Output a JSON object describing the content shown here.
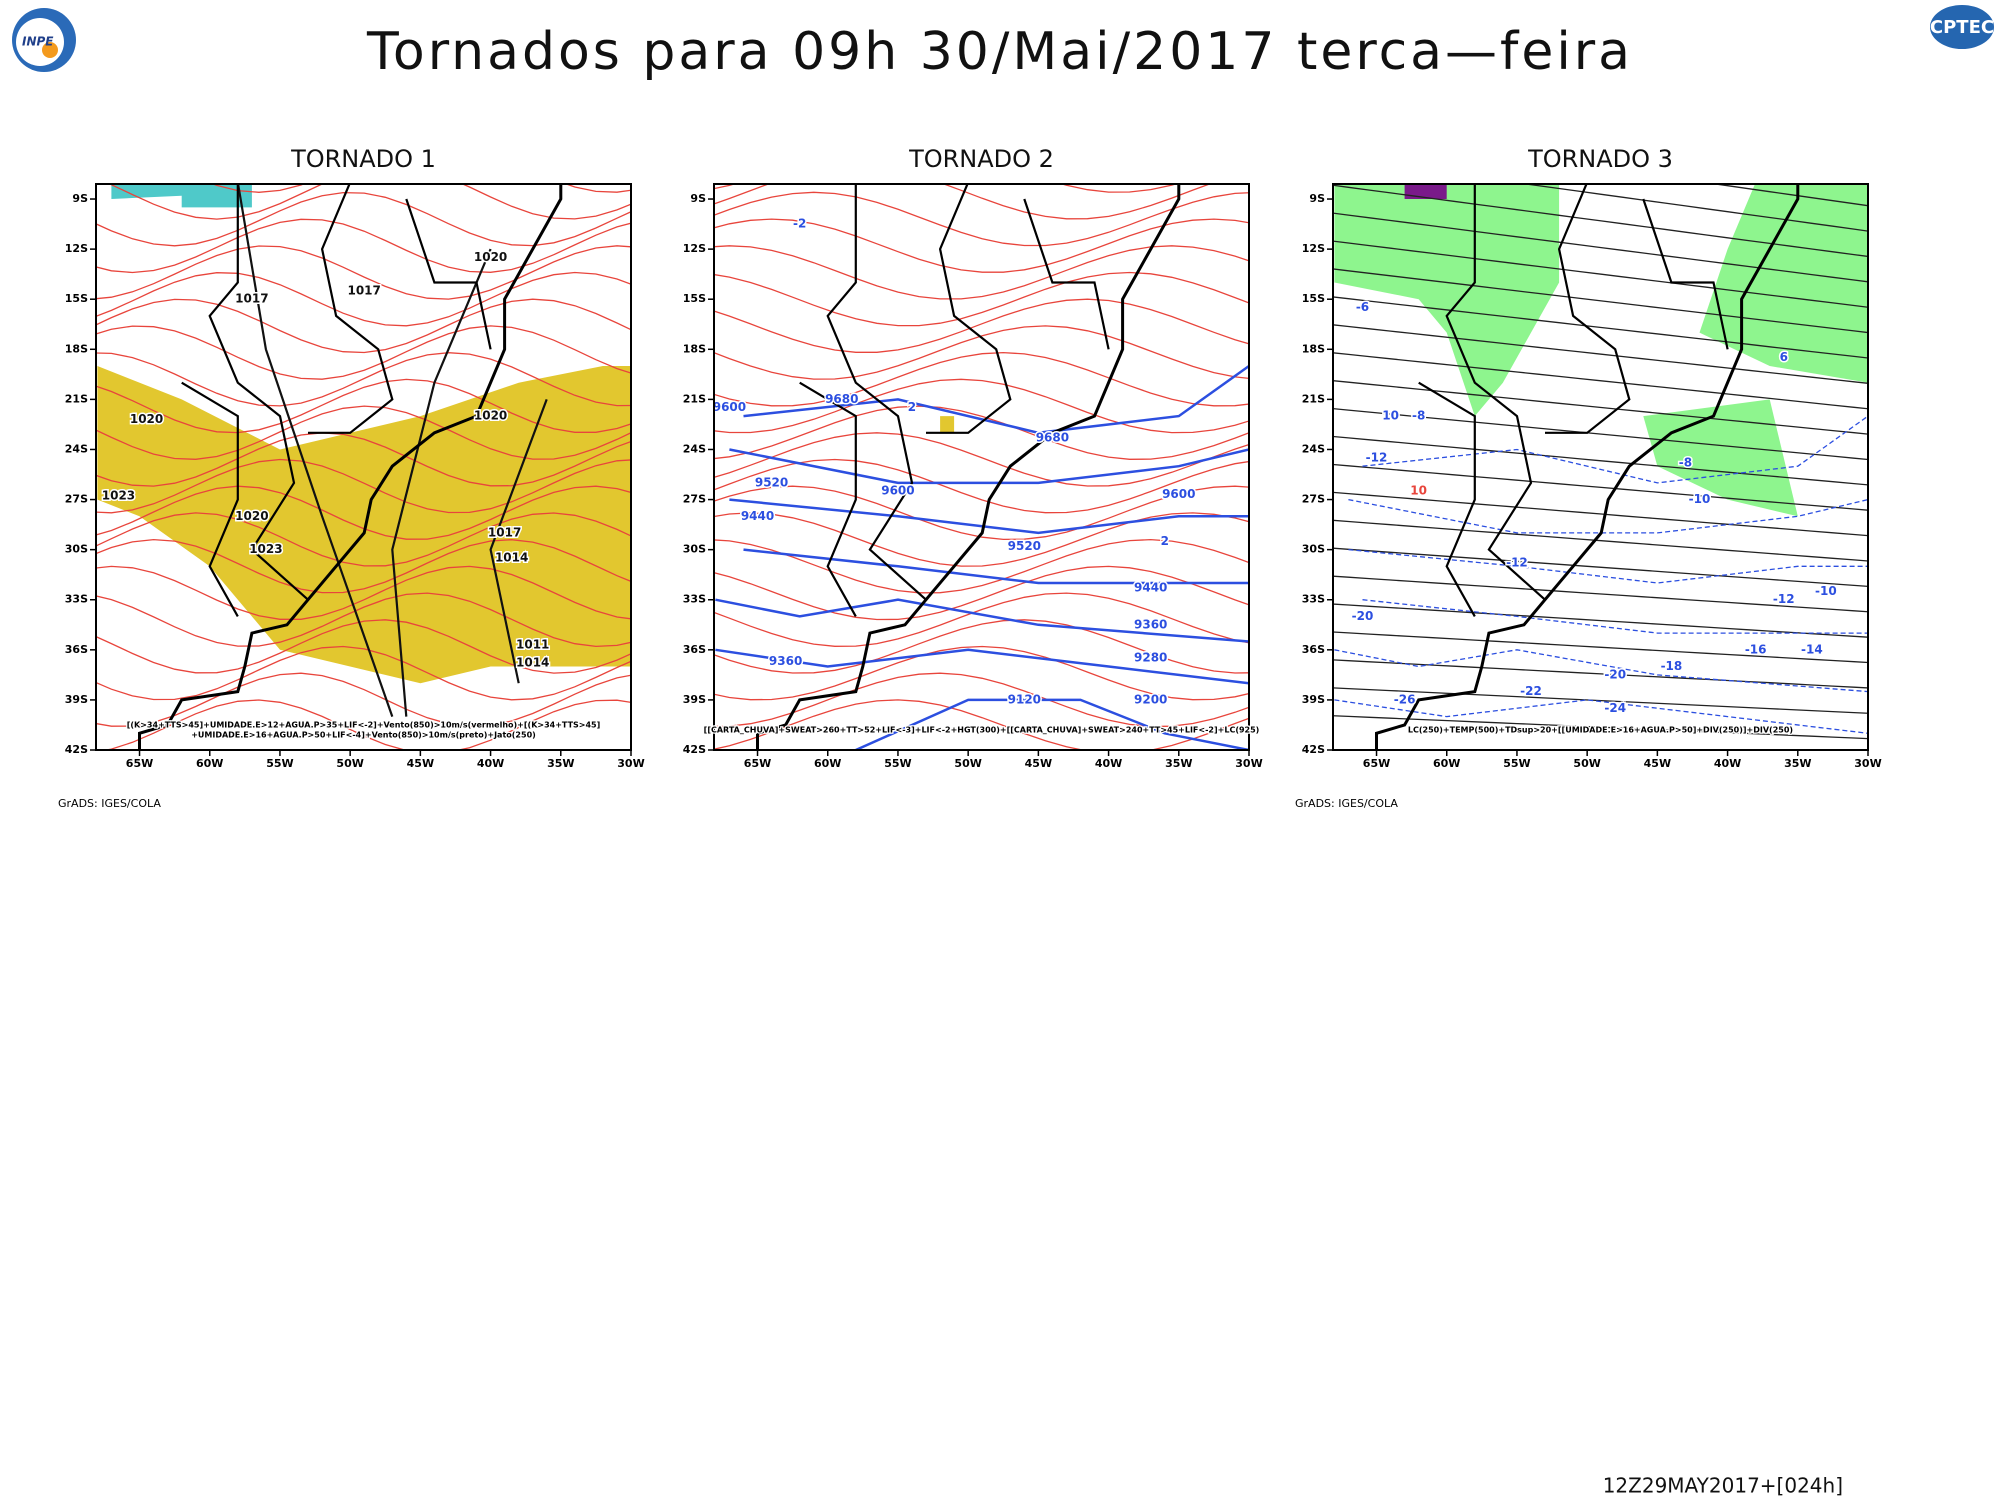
{
  "header": {
    "title": "Tornados  para 09h 30/Mai/2017 terca—feira",
    "logo_left": "INPE",
    "logo_right": "CPTEC"
  },
  "lat_labels": [
    "9S",
    "12S",
    "15S",
    "18S",
    "21S",
    "24S",
    "27S",
    "30S",
    "33S",
    "36S",
    "39S",
    "42S"
  ],
  "lon_labels": [
    "65W",
    "60W",
    "55W",
    "50W",
    "45W",
    "40W",
    "35W",
    "30W"
  ],
  "panels": [
    {
      "title": "TORNADO 1",
      "caption": [
        "[(K>34+TTS>45]+UMIDADE.E>12+AGUA.P>35+LIF<-2]+Vento(850)>10m/s(vermelho)+[(K>34+TTS>45]",
        "+UMIDADE.E>16+AGUA.P>50+LIF<-4]+Vento(850)>10m/s(preto)+Jato(250)"
      ],
      "footer": "GrADS: IGES/COLA",
      "contour_labels": [
        "1020",
        "1017",
        "1017",
        "1020",
        "1020",
        "1023",
        "1020",
        "1023",
        "1017",
        "1014",
        "1011",
        "1014"
      ]
    },
    {
      "title": "TORNADO 2",
      "caption": [
        "[[CARTA_CHUVA]+SWEAT>260+TT>52+LIF<-3]+LIF<-2+HGT(300)+[[CARTA_CHUVA]+SWEAT>240+TT>45+LIF<-2]+LC(925)"
      ],
      "contour_labels": [
        "-2",
        "9680",
        "9600",
        "2",
        "9680",
        "9520",
        "9600",
        "9600",
        "9440",
        "9520",
        "9440",
        "2",
        "9360",
        "9280",
        "9360",
        "9200",
        "9120"
      ]
    },
    {
      "title": "TORNADO 3",
      "caption": [
        "LC(250)+TEMP(500)+TDsup>20+[[UMIDADE.E>16+AGUA.P>50]+DIV(250)]+DIV(250)"
      ],
      "footer": "GrADS: IGES/COLA",
      "contour_labels": [
        "-6",
        "6",
        "-8",
        "-8",
        "-10",
        "-12",
        "10",
        "10",
        "-10",
        "-12",
        "-12",
        "-20",
        "-14",
        "-16",
        "-18",
        "-20",
        "-22",
        "-24",
        "-26"
      ]
    }
  ],
  "timestamp": "12Z29MAY2017+[024h]"
}
